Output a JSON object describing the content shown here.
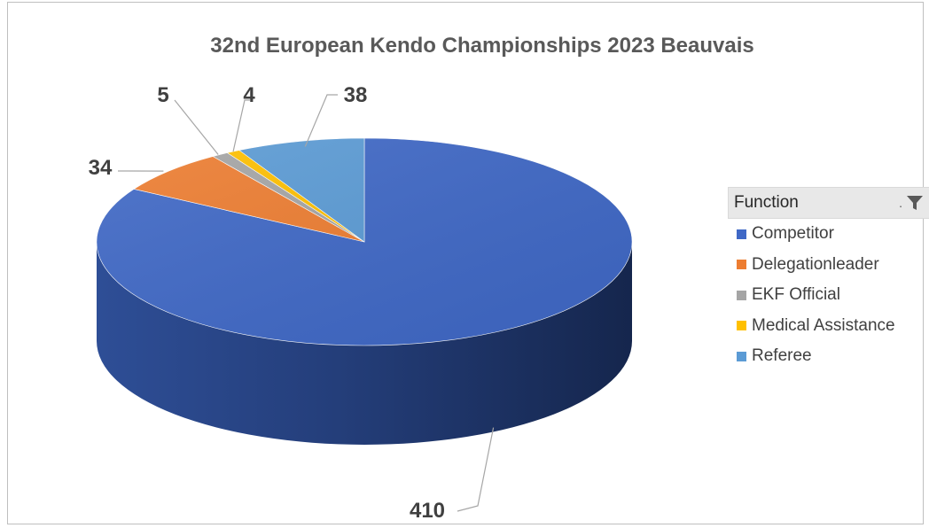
{
  "chart_data": {
    "type": "pie",
    "title": "32nd European Kendo Championships 2023 Beauvais",
    "legend_title": "Function",
    "legend_position": "right",
    "start_angle_deg": 0,
    "direction": "clockwise",
    "slices": [
      {
        "name": "Competitor",
        "value": 410,
        "label": "410",
        "color": "#3f68c6"
      },
      {
        "name": "Delegationleader",
        "value": 34,
        "label": "34",
        "color": "#ed7d31"
      },
      {
        "name": "EKF Official",
        "value": 5,
        "label": "5",
        "color": "#a5a5a5"
      },
      {
        "name": "Medical Assistance",
        "value": 4,
        "label": "4",
        "color": "#ffc000"
      },
      {
        "name": "Referee",
        "value": 38,
        "label": "38",
        "color": "#5b9bd5"
      }
    ]
  },
  "legend": {
    "filter_icon": "funnel-icon"
  }
}
